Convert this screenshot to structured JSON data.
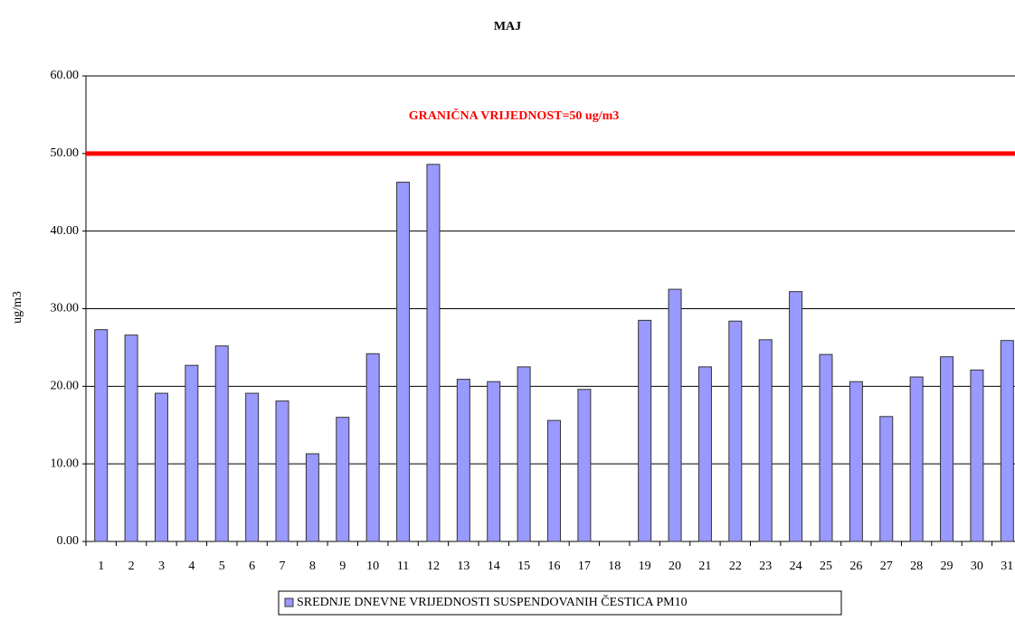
{
  "chart_data": {
    "type": "bar",
    "title": "MAJ",
    "ylabel": "ug/m3",
    "categories": [
      "1",
      "2",
      "3",
      "4",
      "5",
      "6",
      "7",
      "8",
      "9",
      "10",
      "11",
      "12",
      "13",
      "14",
      "15",
      "16",
      "17",
      "18",
      "19",
      "20",
      "21",
      "22",
      "23",
      "24",
      "25",
      "26",
      "27",
      "28",
      "29",
      "30",
      "31"
    ],
    "series": [
      {
        "name": "SREDNJE DNEVNE VRIJEDNOSTI SUSPENDOVANIH ČESTICA PM10",
        "color": "#9999ff",
        "values": [
          27.3,
          26.6,
          19.1,
          22.7,
          25.2,
          19.1,
          18.1,
          11.3,
          16.0,
          24.2,
          46.3,
          48.6,
          20.9,
          20.6,
          22.5,
          15.6,
          19.6,
          null,
          28.5,
          32.5,
          22.5,
          28.4,
          26.0,
          32.2,
          24.1,
          20.6,
          16.1,
          21.2,
          23.8,
          22.1,
          25.9
        ]
      }
    ],
    "ylim": [
      0,
      60
    ],
    "yticks": [
      {
        "value": 0,
        "label": "0.00"
      },
      {
        "value": 10,
        "label": "10.00"
      },
      {
        "value": 20,
        "label": "20.00"
      },
      {
        "value": 30,
        "label": "30.00"
      },
      {
        "value": 40,
        "label": "40.00"
      },
      {
        "value": 50,
        "label": "50.00"
      },
      {
        "value": 60,
        "label": "60.00"
      }
    ],
    "grid": true,
    "threshold": 50,
    "threshold_color": "#ff0000",
    "threshold_label": "GRANIČNA VRIJEDNOST=50 ug/m3",
    "legend": "bottom"
  }
}
